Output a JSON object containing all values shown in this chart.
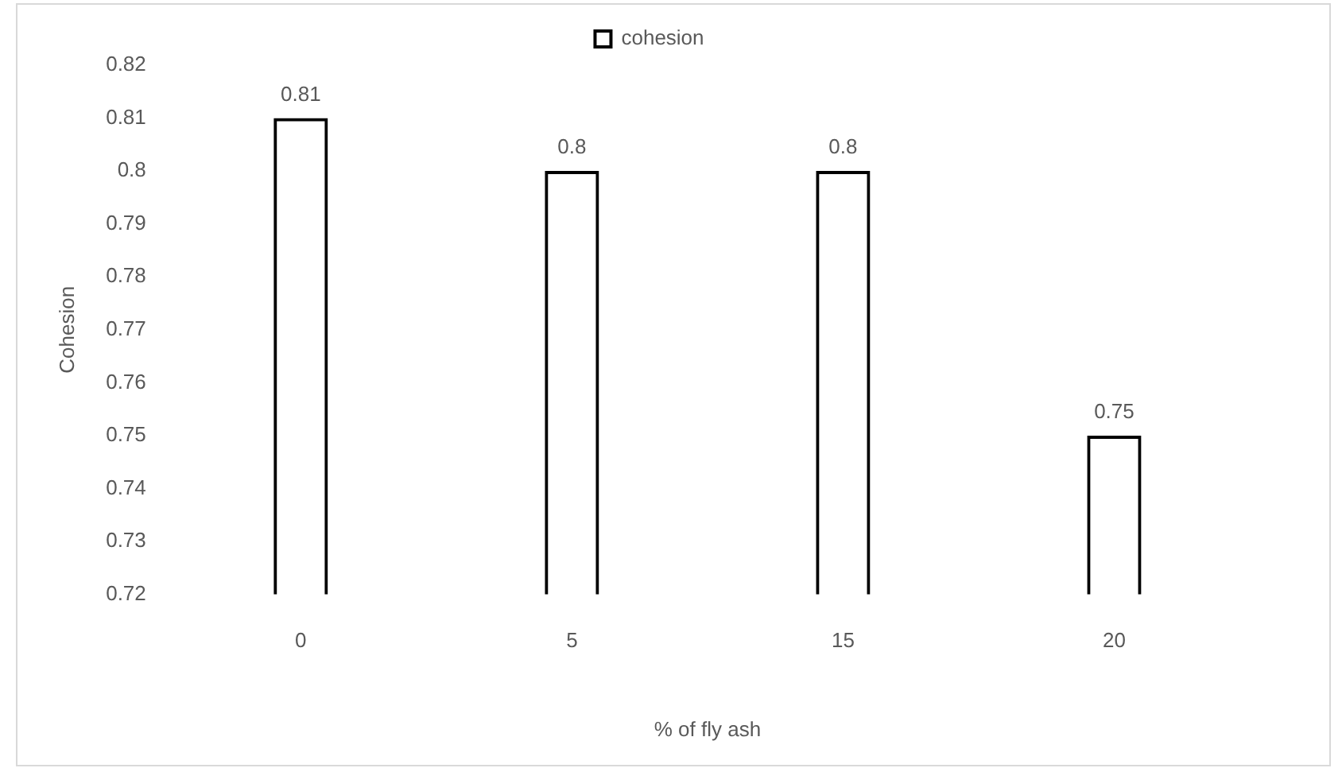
{
  "chart_data": {
    "type": "bar",
    "xlabel": "% of fly ash",
    "ylabel": "Cohesion",
    "categories": [
      "0",
      "5",
      "15",
      "20"
    ],
    "series": [
      {
        "name": "cohesion",
        "color": "#000000",
        "values": [
          0.81,
          0.8,
          0.8,
          0.75
        ]
      }
    ],
    "ylim": [
      0.72,
      0.82
    ],
    "yticks": [
      0.72,
      0.73,
      0.74,
      0.75,
      0.76,
      0.77,
      0.78,
      0.79,
      0.8,
      0.81,
      0.82
    ],
    "grid": false,
    "legend": "top",
    "data_labels": true
  }
}
